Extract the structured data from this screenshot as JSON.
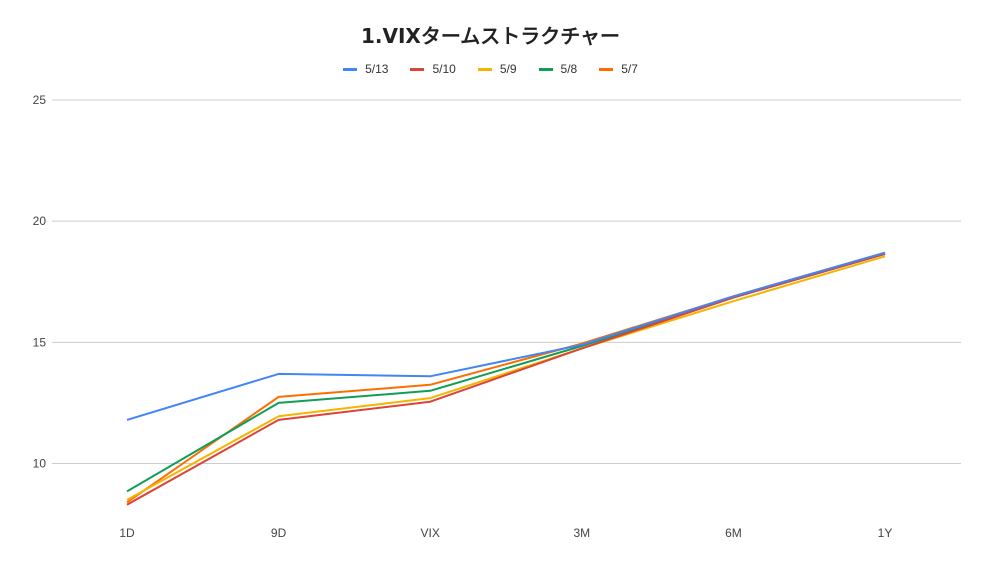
{
  "chart_data": {
    "type": "line",
    "title": "1.VIXタームストラクチャー",
    "xlabel": "",
    "ylabel": "",
    "categories": [
      "1D",
      "9D",
      "VIX",
      "3M",
      "6M",
      "1Y"
    ],
    "ylim": [
      8,
      25
    ],
    "yticks": [
      10,
      15,
      20,
      25
    ],
    "grid": true,
    "legend_position": "top-center",
    "series": [
      {
        "name": "5/13",
        "color": "#4285F4",
        "values": [
          11.8,
          13.7,
          13.6,
          14.9,
          16.9,
          18.7
        ]
      },
      {
        "name": "5/10",
        "color": "#DB4437",
        "values": [
          8.3,
          11.8,
          12.55,
          14.75,
          16.85,
          18.65
        ]
      },
      {
        "name": "5/9",
        "color": "#F4B400",
        "values": [
          8.5,
          11.95,
          12.7,
          14.75,
          16.7,
          18.55
        ]
      },
      {
        "name": "5/8",
        "color": "#0F9D58",
        "values": [
          8.85,
          12.5,
          13.0,
          14.85,
          16.85,
          18.65
        ]
      },
      {
        "name": "5/7",
        "color": "#FF6D01",
        "values": [
          8.4,
          12.75,
          13.25,
          14.95,
          16.9,
          18.7
        ]
      }
    ]
  }
}
